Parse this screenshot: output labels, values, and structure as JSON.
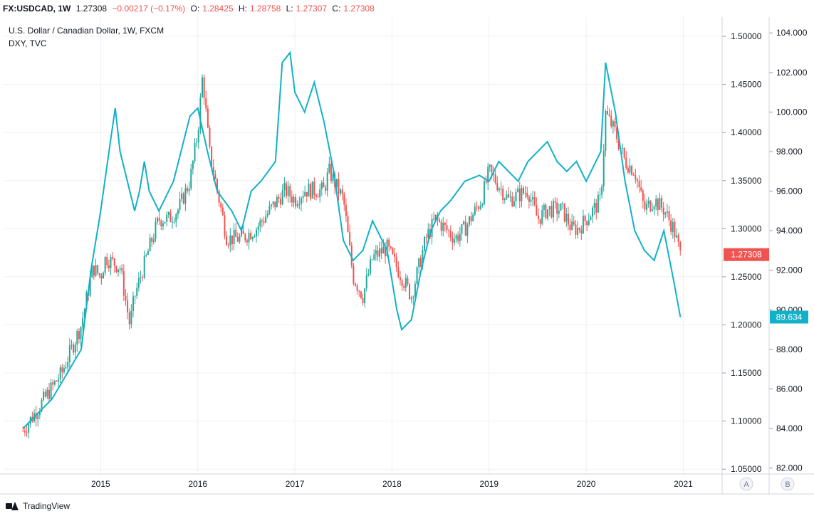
{
  "header": {
    "symbol": "FX:USDCAD, 1W",
    "last": "1.27308",
    "change": "−0.00217 (−0.17%)",
    "open_label": "O:",
    "open": "1.28425",
    "high_label": "H:",
    "high": "1.28758",
    "low_label": "L:",
    "low": "1.27307",
    "close_label": "C:",
    "close": "1.27308"
  },
  "legend": {
    "main": "U.S. Dollar / Canadian Dollar, 1W, FXCM",
    "overlay": "DXY, TVC"
  },
  "footer": {
    "brand": "TradingView"
  },
  "colors": {
    "up": "#26a69a",
    "down": "#ef5350",
    "dxy": "#12b1c7",
    "grid": "#eef0f3",
    "axis_text": "#131722"
  },
  "chart_data": {
    "type": "line",
    "x_ticks": [
      "2015",
      "2016",
      "2017",
      "2018",
      "2019",
      "2020",
      "2021"
    ],
    "scale_buttons": [
      "A",
      "B"
    ],
    "right_axis": {
      "ticks": [
        "1.50000",
        "1.45000",
        "1.40000",
        "1.35000",
        "1.30000",
        "1.25000",
        "1.20000",
        "1.15000",
        "1.10000",
        "1.05000"
      ],
      "ylim": [
        1.045,
        1.52
      ],
      "last_value": "1.27308"
    },
    "far_axis": {
      "ticks": [
        "104.000",
        "102.000",
        "100.000",
        "98.000",
        "96.000",
        "94.000",
        "92.000",
        "90.000",
        "88.000",
        "86.000",
        "84.000",
        "82.000"
      ],
      "ylim": [
        81.7,
        104.8
      ],
      "last_value": "89.634"
    },
    "series": [
      {
        "name": "FX:USDCAD",
        "style": "candles",
        "x": [
          2014.2,
          2014.4,
          2014.6,
          2014.8,
          2014.92,
          2015.0,
          2015.05,
          2015.2,
          2015.3,
          2015.35,
          2015.5,
          2015.6,
          2015.7,
          2015.8,
          2015.92,
          2016.0,
          2016.05,
          2016.12,
          2016.3,
          2016.45,
          2016.6,
          2016.75,
          2016.9,
          2017.0,
          2017.1,
          2017.3,
          2017.35,
          2017.5,
          2017.6,
          2017.7,
          2017.8,
          2017.95,
          2018.1,
          2018.2,
          2018.35,
          2018.45,
          2018.55,
          2018.65,
          2018.75,
          2018.92,
          2019.0,
          2019.2,
          2019.4,
          2019.5,
          2019.6,
          2019.75,
          2019.85,
          2019.92,
          2020.0,
          2020.15,
          2020.2,
          2020.3,
          2020.4,
          2020.5,
          2020.6,
          2020.7,
          2020.8,
          2020.9,
          2020.97
        ],
        "values": [
          1.09,
          1.12,
          1.15,
          1.2,
          1.26,
          1.25,
          1.27,
          1.26,
          1.2,
          1.23,
          1.28,
          1.31,
          1.31,
          1.32,
          1.35,
          1.4,
          1.46,
          1.38,
          1.29,
          1.29,
          1.3,
          1.32,
          1.34,
          1.33,
          1.34,
          1.34,
          1.36,
          1.33,
          1.25,
          1.23,
          1.27,
          1.28,
          1.25,
          1.23,
          1.29,
          1.31,
          1.3,
          1.29,
          1.3,
          1.33,
          1.36,
          1.33,
          1.34,
          1.31,
          1.32,
          1.32,
          1.3,
          1.3,
          1.31,
          1.33,
          1.42,
          1.4,
          1.37,
          1.36,
          1.32,
          1.33,
          1.32,
          1.3,
          1.273
        ]
      },
      {
        "name": "TVC:DXY",
        "style": "line",
        "x": [
          2014.2,
          2014.5,
          2014.8,
          2014.9,
          2015.0,
          2015.1,
          2015.15,
          2015.2,
          2015.35,
          2015.4,
          2015.45,
          2015.5,
          2015.6,
          2015.75,
          2015.92,
          2016.0,
          2016.1,
          2016.2,
          2016.35,
          2016.45,
          2016.55,
          2016.65,
          2016.8,
          2016.87,
          2016.95,
          2017.0,
          2017.1,
          2017.2,
          2017.3,
          2017.4,
          2017.5,
          2017.6,
          2017.7,
          2017.8,
          2017.95,
          2018.05,
          2018.1,
          2018.2,
          2018.3,
          2018.4,
          2018.5,
          2018.6,
          2018.75,
          2018.9,
          2019.0,
          2019.1,
          2019.2,
          2019.3,
          2019.4,
          2019.5,
          2019.6,
          2019.7,
          2019.8,
          2019.9,
          2020.0,
          2020.15,
          2020.2,
          2020.3,
          2020.4,
          2020.5,
          2020.6,
          2020.7,
          2020.8,
          2020.9,
          2020.97
        ],
        "values": [
          84.0,
          85.5,
          88.0,
          92.0,
          95.0,
          98.5,
          100.2,
          98.0,
          95.0,
          96.0,
          97.5,
          96.0,
          95.0,
          96.5,
          99.8,
          100.2,
          98.0,
          96.0,
          95.0,
          94.0,
          96.0,
          96.5,
          97.5,
          102.5,
          103.0,
          101.0,
          100.0,
          101.5,
          99.5,
          97.0,
          93.5,
          92.5,
          93.0,
          94.5,
          93.0,
          90.0,
          89.0,
          89.5,
          92.0,
          94.0,
          95.0,
          95.5,
          96.5,
          96.8,
          96.5,
          97.5,
          97.0,
          96.5,
          97.5,
          98.0,
          98.5,
          97.5,
          97.0,
          97.5,
          96.5,
          98.0,
          102.5,
          100.0,
          96.5,
          94.0,
          93.0,
          92.5,
          94.0,
          91.5,
          89.634
        ]
      }
    ]
  }
}
